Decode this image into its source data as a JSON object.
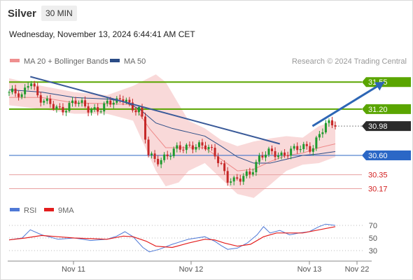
{
  "header": {
    "instrument": "Silver",
    "timeframe": "30 MIN",
    "datetime": "Wednesday, November 13, 2024 6:44:41 AM CET"
  },
  "colors": {
    "resistance": "#5aa500",
    "support": "#2b67c6",
    "current": "#2b2b2b",
    "candle_up": "#1f9a2e",
    "candle_down": "#c62828",
    "bollinger_fill": "#f7cccc",
    "ma20": "#ee8a8a",
    "ma50": "#2b4c86",
    "trendline": "#3a5a99",
    "forecast_arrow": "#2d66b5",
    "rsi": "#4f79d6",
    "rsi_ma": "#e31d1d",
    "minor_level": "#e8a0a0"
  },
  "chart_data": {
    "type": "candlestick",
    "legend": [
      {
        "name": "MA 20 + Bollinger Bands",
        "color": "#ef8f8f"
      },
      {
        "name": "MA 50",
        "color": "#2b4c86"
      }
    ],
    "credit": "Research © 2024 Trading Central",
    "x_ticks": [
      "Nov 11",
      "Nov 12",
      "Nov 13",
      "Nov 22"
    ],
    "ylim": [
      30.02,
      31.67
    ],
    "levels": [
      {
        "value": 31.55,
        "label": "31.55",
        "kind": "resistance"
      },
      {
        "value": 31.2,
        "label": "31.20",
        "kind": "resistance"
      },
      {
        "value": 30.98,
        "label": "30.98",
        "kind": "current"
      },
      {
        "value": 30.6,
        "label": "30.60",
        "kind": "support"
      },
      {
        "value": 30.35,
        "label": "30.35",
        "kind": "target"
      },
      {
        "value": 30.17,
        "label": "30.17",
        "kind": "target"
      }
    ],
    "close_path": [
      [
        0,
        31.42
      ],
      [
        0.04,
        31.35
      ],
      [
        0.065,
        31.62
      ],
      [
        0.09,
        31.35
      ],
      [
        0.12,
        31.25
      ],
      [
        0.16,
        31.2
      ],
      [
        0.2,
        31.3
      ],
      [
        0.24,
        31.2
      ],
      [
        0.28,
        31.22
      ],
      [
        0.3,
        31.26
      ],
      [
        0.33,
        31.28
      ],
      [
        0.355,
        31.38
      ],
      [
        0.375,
        31.22
      ],
      [
        0.4,
        31.18
      ],
      [
        0.41,
        31.0
      ],
      [
        0.425,
        30.62
      ],
      [
        0.45,
        30.55
      ],
      [
        0.49,
        30.6
      ],
      [
        0.52,
        30.68
      ],
      [
        0.56,
        30.75
      ],
      [
        0.6,
        30.7
      ],
      [
        0.63,
        30.62
      ],
      [
        0.65,
        30.5
      ],
      [
        0.67,
        30.3
      ],
      [
        0.69,
        30.25
      ],
      [
        0.71,
        30.28
      ],
      [
        0.74,
        30.4
      ],
      [
        0.77,
        30.6
      ],
      [
        0.8,
        30.62
      ],
      [
        0.83,
        30.6
      ],
      [
        0.86,
        30.68
      ],
      [
        0.9,
        30.68
      ],
      [
        0.93,
        30.7
      ],
      [
        0.95,
        30.9
      ],
      [
        0.97,
        31.0
      ],
      [
        1.0,
        30.98
      ]
    ],
    "ma50_path": [
      [
        0,
        31.45
      ],
      [
        0.1,
        31.42
      ],
      [
        0.2,
        31.35
      ],
      [
        0.3,
        31.33
      ],
      [
        0.35,
        31.3
      ],
      [
        0.4,
        31.2
      ],
      [
        0.45,
        31.02
      ],
      [
        0.5,
        30.95
      ],
      [
        0.55,
        30.9
      ],
      [
        0.6,
        30.85
      ],
      [
        0.65,
        30.72
      ],
      [
        0.7,
        30.58
      ],
      [
        0.75,
        30.5
      ],
      [
        0.8,
        30.5
      ],
      [
        0.85,
        30.55
      ],
      [
        0.9,
        30.6
      ],
      [
        0.95,
        30.62
      ],
      [
        1.0,
        30.65
      ]
    ],
    "ma20_path": [
      [
        0,
        31.35
      ],
      [
        0.1,
        31.35
      ],
      [
        0.2,
        31.28
      ],
      [
        0.3,
        31.27
      ],
      [
        0.38,
        31.26
      ],
      [
        0.43,
        30.95
      ],
      [
        0.48,
        30.7
      ],
      [
        0.55,
        30.7
      ],
      [
        0.6,
        30.7
      ],
      [
        0.65,
        30.55
      ],
      [
        0.7,
        30.4
      ],
      [
        0.75,
        30.42
      ],
      [
        0.8,
        30.52
      ],
      [
        0.85,
        30.6
      ],
      [
        0.9,
        30.63
      ],
      [
        0.95,
        30.7
      ],
      [
        1.0,
        30.75
      ]
    ],
    "bb_upper_path": [
      [
        0,
        31.6
      ],
      [
        0.1,
        31.5
      ],
      [
        0.2,
        31.42
      ],
      [
        0.3,
        31.38
      ],
      [
        0.38,
        31.5
      ],
      [
        0.45,
        31.65
      ],
      [
        0.48,
        31.55
      ],
      [
        0.55,
        31.05
      ],
      [
        0.6,
        30.95
      ],
      [
        0.65,
        30.8
      ],
      [
        0.7,
        30.72
      ],
      [
        0.75,
        30.78
      ],
      [
        0.8,
        30.82
      ],
      [
        0.85,
        30.85
      ],
      [
        0.9,
        30.83
      ],
      [
        0.95,
        30.98
      ],
      [
        1.0,
        31.05
      ]
    ],
    "bb_lower_path": [
      [
        0,
        31.25
      ],
      [
        0.1,
        31.2
      ],
      [
        0.2,
        31.14
      ],
      [
        0.3,
        31.14
      ],
      [
        0.38,
        31.05
      ],
      [
        0.45,
        30.4
      ],
      [
        0.48,
        30.2
      ],
      [
        0.52,
        30.25
      ],
      [
        0.55,
        30.4
      ],
      [
        0.6,
        30.5
      ],
      [
        0.65,
        30.3
      ],
      [
        0.7,
        30.1
      ],
      [
        0.75,
        30.05
      ],
      [
        0.8,
        30.22
      ],
      [
        0.85,
        30.4
      ],
      [
        0.9,
        30.48
      ],
      [
        0.95,
        30.5
      ],
      [
        1.0,
        30.58
      ]
    ],
    "trendline": [
      [
        0.065,
        31.62
      ],
      [
        0.83,
        30.75
      ]
    ],
    "forecast": [
      [
        0.93,
        30.98
      ],
      [
        1.15,
        31.55
      ]
    ],
    "rsi": {
      "legend": [
        {
          "name": "RSI",
          "color": "#4f79d6"
        },
        {
          "name": "9MA",
          "color": "#e31d1d"
        }
      ],
      "ticks": [
        70,
        50,
        30
      ],
      "ylim": [
        20,
        80
      ],
      "rsi_path": [
        [
          0,
          47
        ],
        [
          0.04,
          50
        ],
        [
          0.065,
          63
        ],
        [
          0.1,
          55
        ],
        [
          0.15,
          48
        ],
        [
          0.2,
          50
        ],
        [
          0.25,
          46
        ],
        [
          0.3,
          48
        ],
        [
          0.33,
          53
        ],
        [
          0.355,
          60
        ],
        [
          0.38,
          52
        ],
        [
          0.41,
          35
        ],
        [
          0.43,
          28
        ],
        [
          0.46,
          32
        ],
        [
          0.5,
          40
        ],
        [
          0.55,
          48
        ],
        [
          0.6,
          52
        ],
        [
          0.63,
          45
        ],
        [
          0.65,
          38
        ],
        [
          0.67,
          32
        ],
        [
          0.7,
          34
        ],
        [
          0.73,
          42
        ],
        [
          0.76,
          55
        ],
        [
          0.78,
          68
        ],
        [
          0.8,
          58
        ],
        [
          0.83,
          62
        ],
        [
          0.86,
          55
        ],
        [
          0.89,
          58
        ],
        [
          0.92,
          60
        ],
        [
          0.95,
          68
        ],
        [
          0.97,
          72
        ],
        [
          1.0,
          70
        ]
      ],
      "ma_path": [
        [
          0,
          47
        ],
        [
          0.05,
          50
        ],
        [
          0.1,
          54
        ],
        [
          0.15,
          52
        ],
        [
          0.2,
          50
        ],
        [
          0.25,
          49
        ],
        [
          0.3,
          48
        ],
        [
          0.35,
          53
        ],
        [
          0.38,
          52
        ],
        [
          0.42,
          45
        ],
        [
          0.45,
          37
        ],
        [
          0.5,
          35
        ],
        [
          0.55,
          42
        ],
        [
          0.6,
          48
        ],
        [
          0.63,
          47
        ],
        [
          0.66,
          42
        ],
        [
          0.7,
          37
        ],
        [
          0.74,
          40
        ],
        [
          0.78,
          52
        ],
        [
          0.82,
          58
        ],
        [
          0.86,
          58
        ],
        [
          0.9,
          58
        ],
        [
          0.95,
          63
        ],
        [
          1.0,
          68
        ]
      ]
    }
  }
}
